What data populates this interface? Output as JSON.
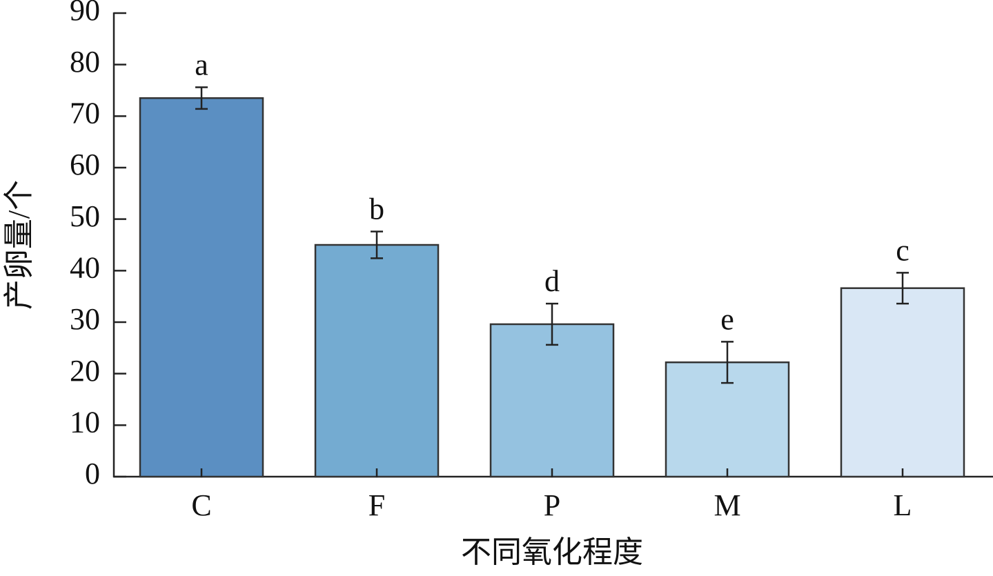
{
  "chart_data": {
    "type": "bar",
    "x_label": "不同氧化程度",
    "y_label": "产卵量/个",
    "categories": [
      "C",
      "F",
      "P",
      "M",
      "L"
    ],
    "values": [
      73.5,
      45.0,
      29.6,
      22.2,
      36.6
    ],
    "errors": [
      2.1,
      2.6,
      4.0,
      4.0,
      3.0
    ],
    "annotations": [
      "a",
      "b",
      "d",
      "e",
      "c"
    ],
    "colors": [
      "#5b8fc2",
      "#74abd1",
      "#95c2e0",
      "#b8d8ec",
      "#d9e7f5"
    ],
    "ylim": [
      0,
      90
    ],
    "yticks": [
      0,
      10,
      20,
      30,
      40,
      50,
      60,
      70,
      80,
      90
    ]
  }
}
